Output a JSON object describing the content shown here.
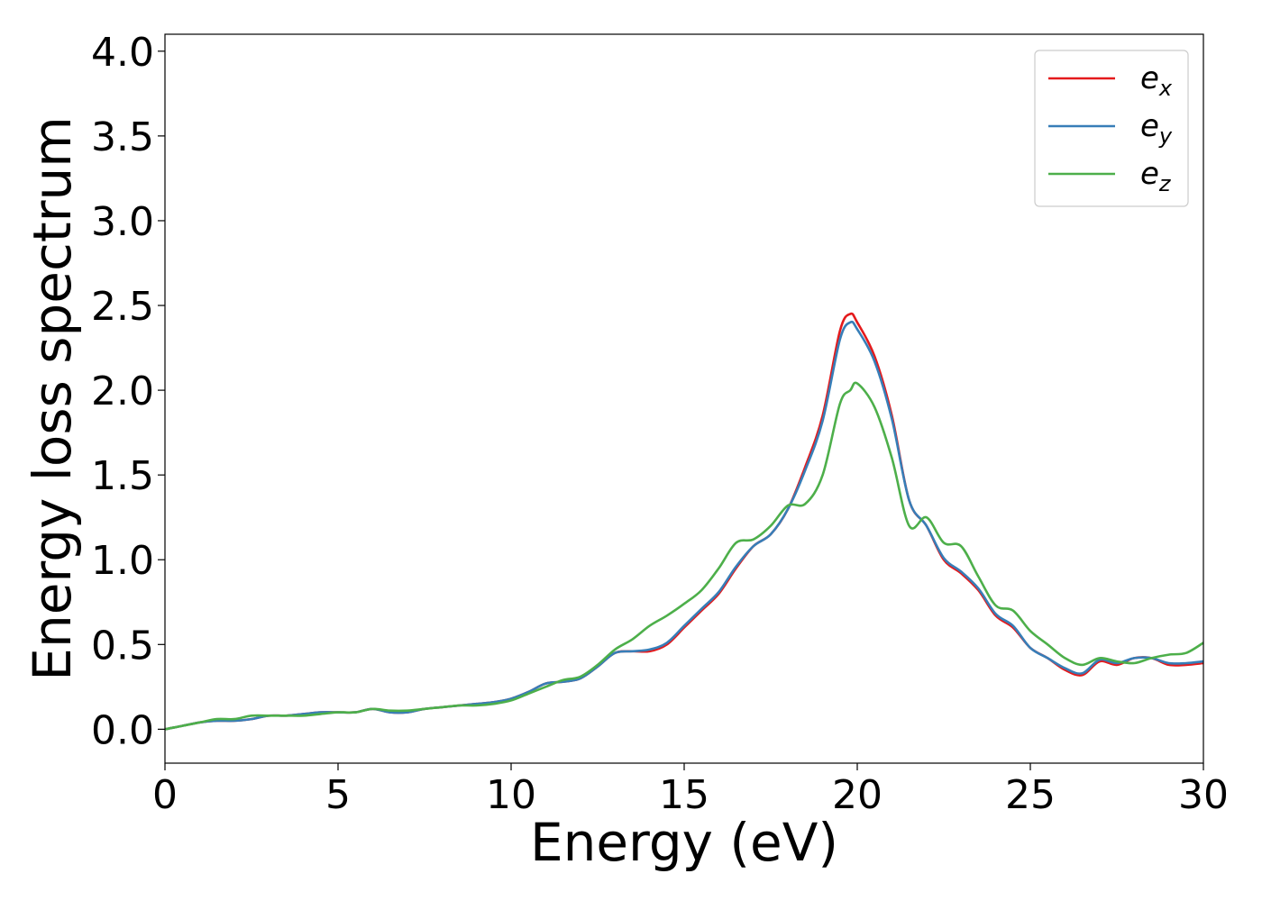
{
  "chart_data": {
    "type": "line",
    "xlabel": "Energy (eV)",
    "ylabel": "Energy loss spectrum",
    "xlim": [
      0,
      30
    ],
    "ylim": [
      -0.2,
      4.1
    ],
    "xticks": [
      0,
      5,
      10,
      15,
      20,
      25,
      30
    ],
    "xtick_labels": [
      "0",
      "5",
      "10",
      "15",
      "20",
      "25",
      "30"
    ],
    "yticks": [
      0.0,
      0.5,
      1.0,
      1.5,
      2.0,
      2.5,
      3.0,
      3.5,
      4.0
    ],
    "ytick_labels": [
      "0.0",
      "0.5",
      "1.0",
      "1.5",
      "2.0",
      "2.5",
      "3.0",
      "3.5",
      "4.0"
    ],
    "grid": false,
    "legend_position": "top-right",
    "series": [
      {
        "name": "e_x",
        "label_base": "e",
        "label_sub": "x",
        "color": "#e41a1c",
        "x": [
          0,
          0.5,
          1,
          1.5,
          2,
          2.5,
          3,
          3.5,
          4,
          4.5,
          5,
          5.5,
          6,
          6.5,
          7,
          7.5,
          8,
          8.5,
          9,
          9.5,
          10,
          10.5,
          11,
          11.5,
          12,
          12.5,
          13,
          13.5,
          14,
          14.5,
          15,
          15.5,
          16,
          16.5,
          17,
          17.5,
          18,
          18.5,
          19,
          19.5,
          19.8,
          20,
          20.5,
          21,
          21.5,
          22,
          22.5,
          23,
          23.5,
          24,
          24.5,
          25,
          25.5,
          26,
          26.5,
          27,
          27.5,
          28,
          28.5,
          29,
          29.5,
          30
        ],
        "y": [
          0.0,
          0.02,
          0.04,
          0.05,
          0.05,
          0.06,
          0.08,
          0.08,
          0.09,
          0.1,
          0.1,
          0.1,
          0.12,
          0.1,
          0.1,
          0.12,
          0.13,
          0.14,
          0.15,
          0.16,
          0.18,
          0.22,
          0.27,
          0.28,
          0.3,
          0.37,
          0.45,
          0.46,
          0.46,
          0.5,
          0.6,
          0.7,
          0.8,
          0.95,
          1.08,
          1.15,
          1.3,
          1.55,
          1.85,
          2.35,
          2.45,
          2.4,
          2.2,
          1.85,
          1.35,
          1.2,
          1.0,
          0.92,
          0.82,
          0.67,
          0.6,
          0.48,
          0.42,
          0.35,
          0.32,
          0.4,
          0.38,
          0.42,
          0.42,
          0.38,
          0.38,
          0.39
        ]
      },
      {
        "name": "e_y",
        "label_base": "e",
        "label_sub": "y",
        "color": "#377eb8",
        "x": [
          0,
          0.5,
          1,
          1.5,
          2,
          2.5,
          3,
          3.5,
          4,
          4.5,
          5,
          5.5,
          6,
          6.5,
          7,
          7.5,
          8,
          8.5,
          9,
          9.5,
          10,
          10.5,
          11,
          11.5,
          12,
          12.5,
          13,
          13.5,
          14,
          14.5,
          15,
          15.5,
          16,
          16.5,
          17,
          17.5,
          18,
          18.5,
          19,
          19.5,
          19.8,
          20,
          20.5,
          21,
          21.5,
          22,
          22.5,
          23,
          23.5,
          24,
          24.5,
          25,
          25.5,
          26,
          26.5,
          27,
          27.5,
          28,
          28.5,
          29,
          29.5,
          30
        ],
        "y": [
          0.0,
          0.02,
          0.04,
          0.05,
          0.05,
          0.06,
          0.08,
          0.08,
          0.09,
          0.1,
          0.1,
          0.1,
          0.12,
          0.1,
          0.1,
          0.12,
          0.13,
          0.14,
          0.15,
          0.16,
          0.18,
          0.22,
          0.27,
          0.28,
          0.3,
          0.37,
          0.45,
          0.46,
          0.47,
          0.51,
          0.61,
          0.71,
          0.81,
          0.96,
          1.08,
          1.15,
          1.3,
          1.53,
          1.82,
          2.3,
          2.4,
          2.36,
          2.17,
          1.83,
          1.35,
          1.2,
          1.01,
          0.93,
          0.83,
          0.68,
          0.61,
          0.48,
          0.42,
          0.36,
          0.33,
          0.41,
          0.39,
          0.42,
          0.42,
          0.39,
          0.39,
          0.4
        ]
      },
      {
        "name": "e_z",
        "label_base": "e",
        "label_sub": "z",
        "color": "#4daf4a",
        "x": [
          0,
          0.5,
          1,
          1.5,
          2,
          2.5,
          3,
          3.5,
          4,
          4.5,
          5,
          5.5,
          6,
          6.5,
          7,
          7.5,
          8,
          8.5,
          9,
          9.5,
          10,
          10.5,
          11,
          11.5,
          12,
          12.5,
          13,
          13.5,
          14,
          14.5,
          15,
          15.5,
          16,
          16.5,
          17,
          17.5,
          18,
          18.5,
          19,
          19.5,
          19.8,
          20,
          20.5,
          21,
          21.5,
          22,
          22.5,
          23,
          23.5,
          24,
          24.5,
          25,
          25.5,
          26,
          26.5,
          27,
          27.5,
          28,
          28.5,
          29,
          29.5,
          30
        ],
        "y": [
          0.0,
          0.02,
          0.04,
          0.06,
          0.06,
          0.08,
          0.08,
          0.08,
          0.08,
          0.09,
          0.1,
          0.1,
          0.12,
          0.11,
          0.11,
          0.12,
          0.13,
          0.14,
          0.14,
          0.15,
          0.17,
          0.21,
          0.25,
          0.29,
          0.31,
          0.38,
          0.47,
          0.53,
          0.61,
          0.67,
          0.74,
          0.82,
          0.95,
          1.1,
          1.12,
          1.2,
          1.32,
          1.33,
          1.5,
          1.92,
          2.0,
          2.04,
          1.9,
          1.6,
          1.2,
          1.25,
          1.1,
          1.08,
          0.9,
          0.73,
          0.7,
          0.58,
          0.5,
          0.42,
          0.38,
          0.42,
          0.4,
          0.39,
          0.42,
          0.44,
          0.45,
          0.51
        ]
      }
    ]
  }
}
